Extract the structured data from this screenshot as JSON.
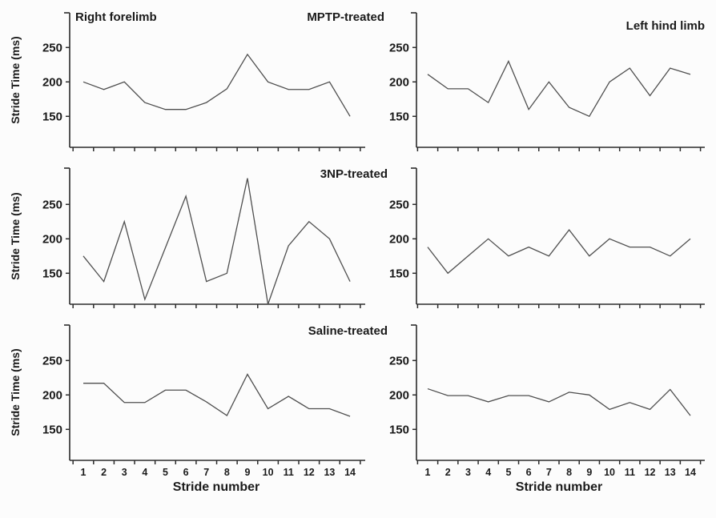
{
  "figure": {
    "left_column_title": "Right forelimb",
    "right_column_title": "Left hind limb",
    "row_labels": [
      "MPTP-treated",
      "3NP-treated",
      "Saline-treated"
    ],
    "ylabel": "Stride Time (ms)",
    "xlabel": "Stride number",
    "background": "#fcfcfc",
    "axis_color": "#2b2b2b",
    "line_color": "#4f4f4f",
    "text_color": "#1a1a1a"
  },
  "chart_data": [
    {
      "type": "line",
      "limb": "Right forelimb",
      "treatment": "MPTP-treated",
      "x": [
        1,
        2,
        3,
        4,
        5,
        6,
        7,
        8,
        9,
        10,
        11,
        12,
        13,
        14
      ],
      "values": [
        200,
        189,
        200,
        170,
        160,
        160,
        170,
        190,
        240,
        200,
        189,
        189,
        200,
        150
      ],
      "yticks": [
        150,
        200,
        250
      ],
      "ylim": [
        105,
        300
      ],
      "ylabel": "Stride Time (ms)",
      "show_x_tick_labels": false,
      "grid": false
    },
    {
      "type": "line",
      "limb": "Left hind limb",
      "treatment": "MPTP-treated",
      "x": [
        1,
        2,
        3,
        4,
        5,
        6,
        7,
        8,
        9,
        10,
        11,
        12,
        13,
        14
      ],
      "values": [
        211,
        190,
        190,
        170,
        230,
        160,
        200,
        163,
        150,
        200,
        220,
        180,
        220,
        211
      ],
      "yticks": [
        150,
        200,
        250
      ],
      "ylim": [
        105,
        300
      ],
      "show_x_tick_labels": false,
      "grid": false
    },
    {
      "type": "line",
      "limb": "Right forelimb",
      "treatment": "3NP-treated",
      "x": [
        1,
        2,
        3,
        4,
        5,
        6,
        7,
        8,
        9,
        10,
        11,
        12,
        13,
        14
      ],
      "values": [
        175,
        138,
        225,
        112,
        187,
        262,
        138,
        150,
        288,
        105,
        190,
        225,
        200,
        138
      ],
      "yticks": [
        150,
        200,
        250
      ],
      "ylim": [
        105,
        300
      ],
      "ylabel": "Stride Time (ms)",
      "show_x_tick_labels": false,
      "grid": false
    },
    {
      "type": "line",
      "limb": "Left hind limb",
      "treatment": "3NP-treated",
      "x": [
        1,
        2,
        3,
        4,
        5,
        6,
        7,
        8,
        9,
        10,
        11,
        12,
        13,
        14
      ],
      "values": [
        188,
        150,
        175,
        200,
        175,
        188,
        175,
        213,
        175,
        200,
        188,
        188,
        175,
        200
      ],
      "yticks": [
        150,
        200,
        250
      ],
      "ylim": [
        105,
        300
      ],
      "show_x_tick_labels": false,
      "grid": false
    },
    {
      "type": "line",
      "limb": "Right forelimb",
      "treatment": "Saline-treated",
      "x": [
        1,
        2,
        3,
        4,
        5,
        6,
        7,
        8,
        9,
        10,
        11,
        12,
        13,
        14
      ],
      "values": [
        217,
        217,
        189,
        189,
        207,
        207,
        190,
        170,
        230,
        180,
        198,
        180,
        180,
        169
      ],
      "yticks": [
        150,
        200,
        250
      ],
      "ylim": [
        105,
        300
      ],
      "ylabel": "Stride Time (ms)",
      "xlabel": "Stride number",
      "show_x_tick_labels": true,
      "grid": false
    },
    {
      "type": "line",
      "limb": "Left hind limb",
      "treatment": "Saline-treated",
      "x": [
        1,
        2,
        3,
        4,
        5,
        6,
        7,
        8,
        9,
        10,
        11,
        12,
        13,
        14
      ],
      "values": [
        209,
        199,
        199,
        190,
        199,
        199,
        190,
        204,
        200,
        179,
        189,
        179,
        208,
        170
      ],
      "yticks": [
        150,
        200,
        250
      ],
      "ylim": [
        105,
        300
      ],
      "xlabel": "Stride number",
      "show_x_tick_labels": true,
      "grid": false
    }
  ]
}
